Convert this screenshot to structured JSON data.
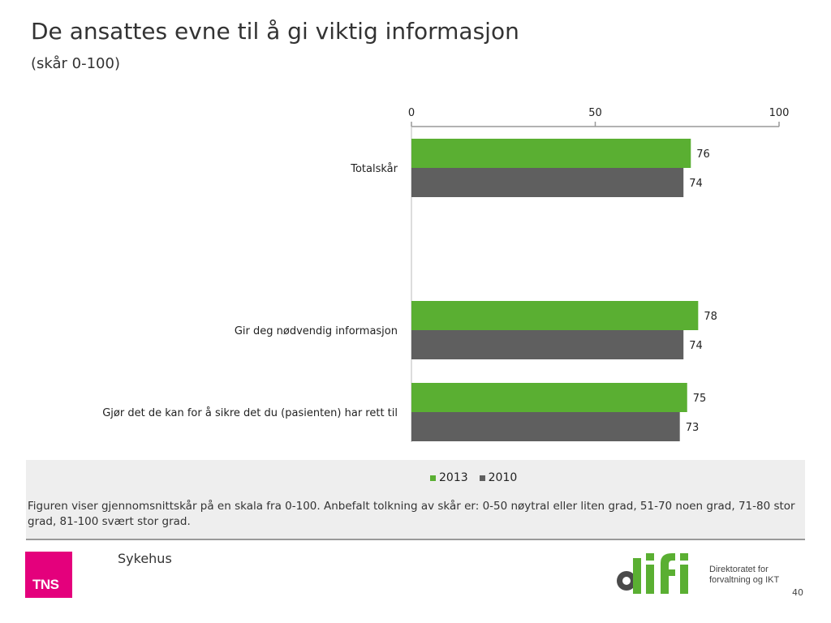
{
  "header": {
    "title": "De ansattes evne til å gi viktig informasjon",
    "subtitle": "(skår 0-100)"
  },
  "chart_data": {
    "type": "bar",
    "orientation": "horizontal",
    "categories": [
      "Totalskår",
      "Gir deg nødvendig informasjon",
      "Gjør det de kan for å sikre det du (pasienten) har rett til"
    ],
    "series": [
      {
        "name": "2013",
        "values": [
          76,
          78,
          75
        ],
        "color": "#5aaf32"
      },
      {
        "name": "2010",
        "values": [
          74,
          74,
          73
        ],
        "color": "#5f5f5f"
      }
    ],
    "xlim": [
      0,
      100
    ],
    "x_ticks": [
      0,
      50,
      100
    ],
    "x_axis_position": "top",
    "grid": false,
    "legend_position": "bottom"
  },
  "footnote": "Figuren viser gjennomsnittskår på en skala fra 0-100. Anbefalt tolkning av skår er: 0-50 nøytral eller liten grad, 51-70 noen grad, 71-80 stor grad, 81-100 svært stor grad.",
  "footer": {
    "section": "Sykehus",
    "tns_logo": "TNS",
    "difi_logo": "difi",
    "difi_text_line1": "Direktoratet for",
    "difi_text_line2": "forvaltning og IKT",
    "page_number": "40"
  }
}
